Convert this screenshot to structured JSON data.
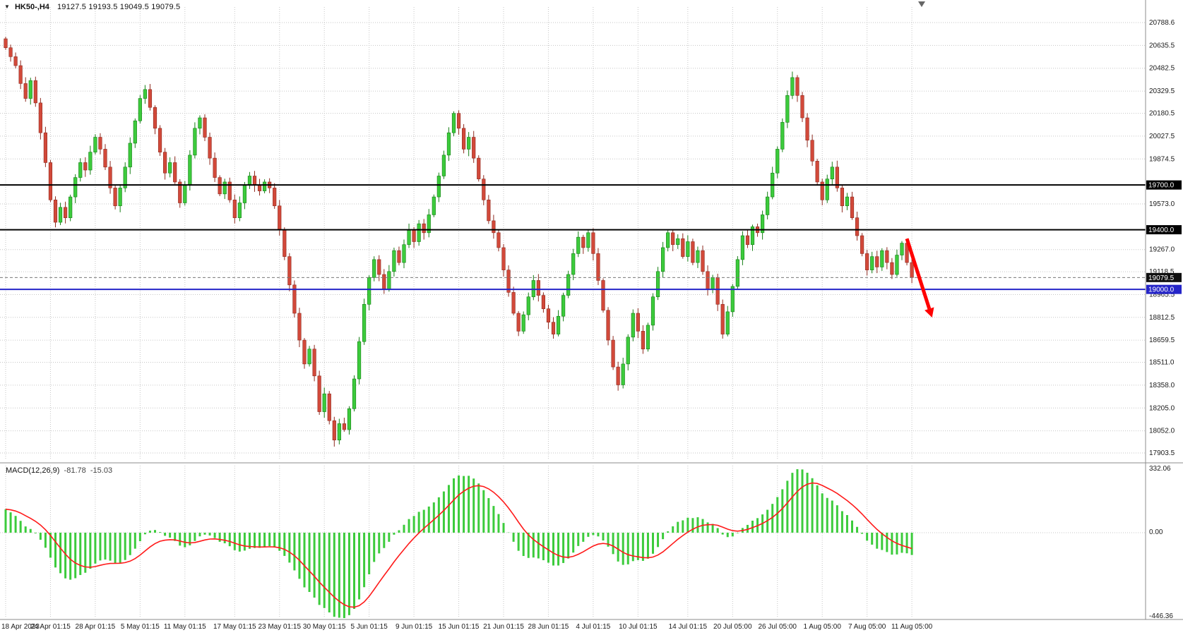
{
  "overlay": {
    "symbol": "HK50-,H4",
    "ohlc": "19127.5 19193.5 19049.5 19079.5"
  },
  "chart_data": {
    "type": "candlestick",
    "title": "HK50- H4 candlestick chart with MACD",
    "timeframe": "H4",
    "x_labels": [
      "18 Apr 2023",
      "24 Apr 01:15",
      "28 Apr 01:15",
      "5 May 01:15",
      "11 May 01:15",
      "17 May 01:15",
      "23 May 01:15",
      "30 May 01:15",
      "5 Jun 01:15",
      "9 Jun 01:15",
      "15 Jun 01:15",
      "21 Jun 01:15",
      "28 Jun 01:15",
      "4 Jul 01:15",
      "10 Jul 01:15",
      "14 Jul 01:15",
      "20 Jul 05:00",
      "26 Jul 05:00",
      "1 Aug 05:00",
      "7 Aug 05:00",
      "11 Aug 05:00"
    ],
    "y_ticks": [
      20788.6,
      20635.5,
      20482.5,
      20329.5,
      20180.5,
      20027.5,
      19874.5,
      19573.0,
      19267.0,
      19118.5,
      18965.5,
      18812.5,
      18659.5,
      18511.0,
      18358.0,
      18205.0,
      18052.0,
      17903.5
    ],
    "hlines": [
      {
        "price": 19700.0,
        "label": "19700.0",
        "color": "#000000",
        "width": 2
      },
      {
        "price": 19400.0,
        "label": "19400.0",
        "color": "#000000",
        "width": 2
      },
      {
        "price": 19000.0,
        "label": "19000.0",
        "color": "#2525c8",
        "width": 2
      }
    ],
    "price_marker": {
      "price": 19079.5,
      "label": "19079.5",
      "box_color": "#101010",
      "line_color": "#777777"
    },
    "candles": {
      "first_open": 20680,
      "closes": [
        20620,
        20560,
        20500,
        20380,
        20280,
        20400,
        20250,
        20050,
        19850,
        19600,
        19450,
        19550,
        19480,
        19620,
        19750,
        19850,
        19800,
        19920,
        20020,
        19940,
        19820,
        19680,
        19560,
        19680,
        19820,
        19980,
        20130,
        20280,
        20340,
        20220,
        20080,
        19920,
        19780,
        19850,
        19720,
        19580,
        19700,
        19900,
        20080,
        20150,
        20020,
        19880,
        19750,
        19640,
        19720,
        19600,
        19480,
        19580,
        19700,
        19760,
        19700,
        19660,
        19720,
        19680,
        19560,
        19400,
        19220,
        19030,
        18840,
        18660,
        18500,
        18600,
        18420,
        18180,
        18300,
        18120,
        17990,
        18100,
        18060,
        18200,
        18400,
        18650,
        18900,
        19080,
        19200,
        19100,
        19000,
        19120,
        19260,
        19180,
        19300,
        19400,
        19320,
        19440,
        19380,
        19500,
        19620,
        19760,
        19900,
        20050,
        20180,
        20080,
        19940,
        20020,
        19880,
        19740,
        19600,
        19460,
        19380,
        19280,
        19130,
        18980,
        18840,
        18720,
        18830,
        18950,
        19060,
        18960,
        18870,
        18780,
        18700,
        18820,
        18960,
        19100,
        19240,
        19350,
        19280,
        19380,
        19240,
        19060,
        18860,
        18660,
        18480,
        18360,
        18500,
        18680,
        18840,
        18720,
        18600,
        18760,
        18950,
        19120,
        19280,
        19380,
        19300,
        19340,
        19220,
        19320,
        19180,
        19260,
        19120,
        19000,
        19080,
        18900,
        18700,
        18850,
        19020,
        19200,
        19360,
        19300,
        19420,
        19380,
        19500,
        19620,
        19780,
        19940,
        20120,
        20300,
        20420,
        20300,
        20150,
        20000,
        19860,
        19720,
        19600,
        19740,
        19820,
        19680,
        19560,
        19620,
        19480,
        19360,
        19240,
        19130,
        19220,
        19150,
        19260,
        19180,
        19100,
        19230,
        19310,
        19180,
        19079.5
      ]
    },
    "macd": {
      "label": "MACD(12,26,9)",
      "macd_value": "-81.78",
      "signal_value": "-15.03",
      "fast": 12,
      "slow": 26,
      "signal": 9,
      "scale_max": 332.06,
      "scale_zero_label": "0.00",
      "scale_min": -446.36
    },
    "arrow_annotation": {
      "from_index": 181,
      "from_price": 19340,
      "to_index": 185.5,
      "to_price": 18870,
      "color": "#ff0000"
    },
    "colors": {
      "up": "#3ccb3c",
      "up_border": "#157f15",
      "down": "#d2493a",
      "down_border": "#8f2b20",
      "grid": "#c6c6c6",
      "hist": "#3ccb3c",
      "signal_line": "#ff1a1a",
      "level_black": "#000000",
      "level_blue": "#2525c8"
    }
  }
}
